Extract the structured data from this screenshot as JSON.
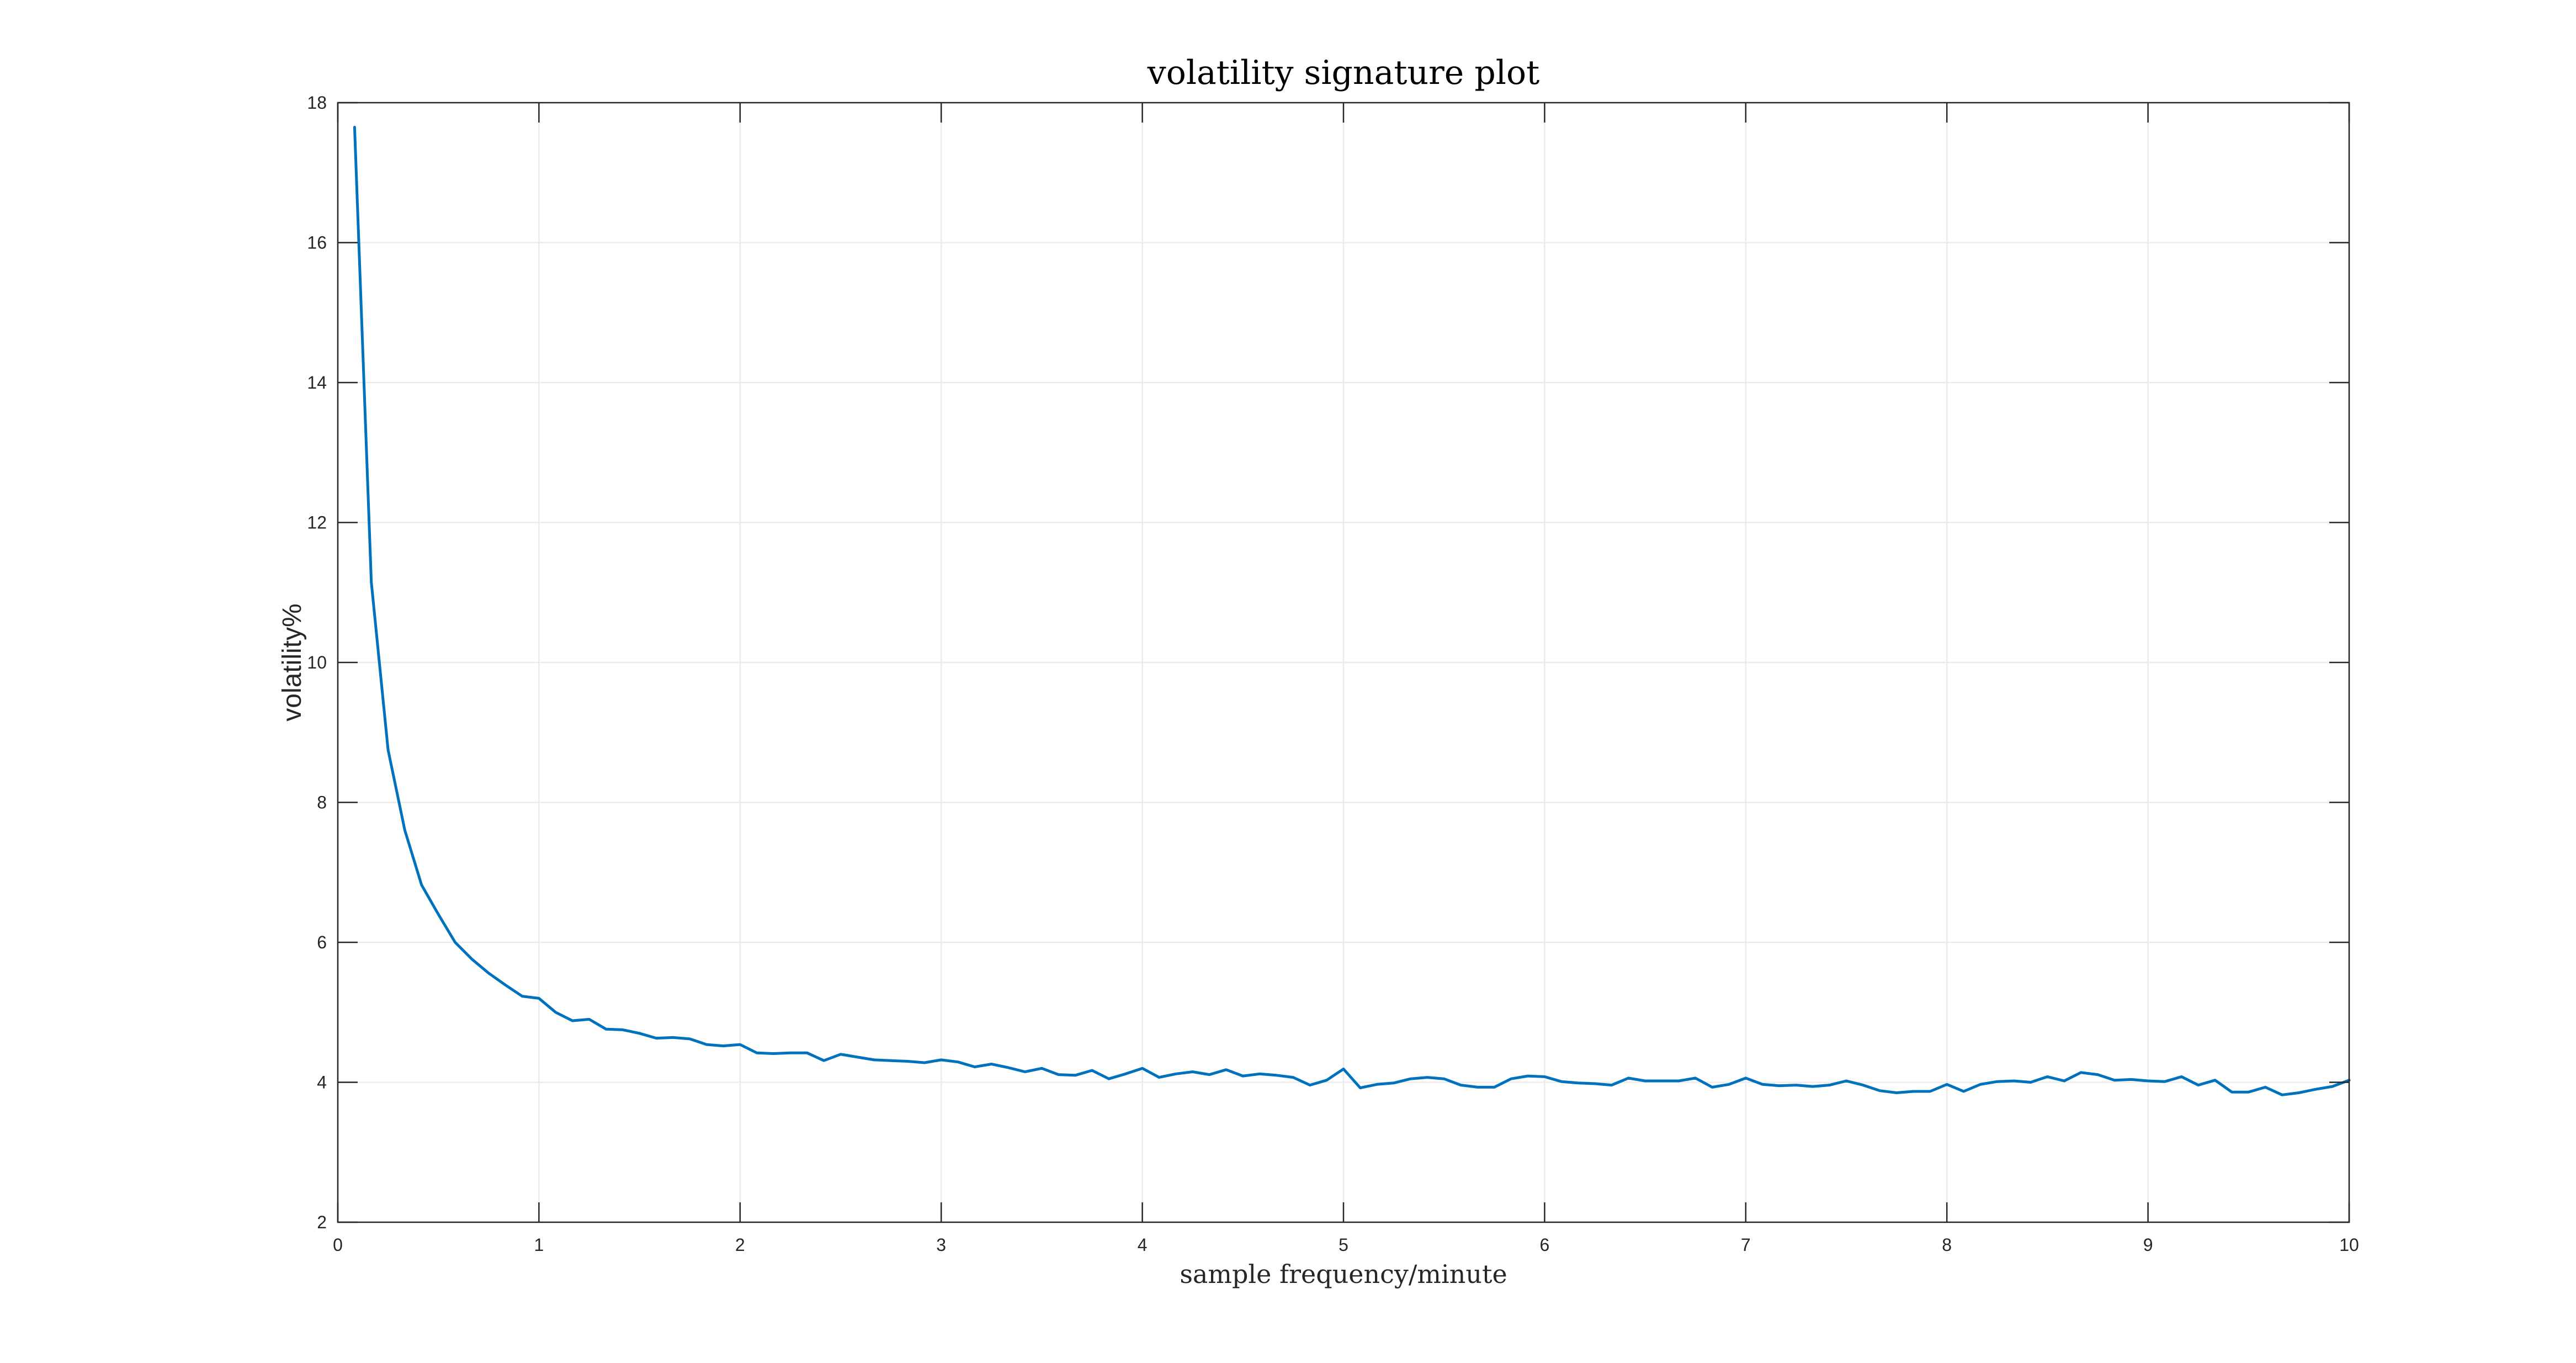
{
  "chart_data": {
    "type": "line",
    "title": "volatility signature plot",
    "xlabel": "sample frequency/minute",
    "ylabel": "volatility%",
    "xlim": [
      0,
      10
    ],
    "ylim": [
      2,
      18
    ],
    "xticks": [
      0,
      1,
      2,
      3,
      4,
      5,
      6,
      7,
      8,
      9,
      10
    ],
    "yticks": [
      2,
      4,
      6,
      8,
      10,
      12,
      14,
      16,
      18
    ],
    "grid": true,
    "line_color": "#0072bd",
    "series": [
      {
        "x": [
          0.0833,
          0.1667,
          0.25,
          0.3333,
          0.4167,
          0.5,
          0.5833,
          0.6667,
          0.75,
          0.8333,
          0.9167,
          1.0,
          1.0833,
          1.1667,
          1.25,
          1.3333,
          1.4167,
          1.5,
          1.5833,
          1.6667,
          1.75,
          1.8333,
          1.9167,
          2.0,
          2.0833,
          2.1667,
          2.25,
          2.3333,
          2.4167,
          2.5,
          2.5833,
          2.6667,
          2.75,
          2.8333,
          2.9167,
          3.0,
          3.0833,
          3.1667,
          3.25,
          3.3333,
          3.4167,
          3.5,
          3.5833,
          3.6667,
          3.75,
          3.8333,
          3.9167,
          4.0,
          4.0833,
          4.1667,
          4.25,
          4.3333,
          4.4167,
          4.5,
          4.5833,
          4.6667,
          4.75,
          4.8333,
          4.9167,
          5.0,
          5.0833,
          5.1667,
          5.25,
          5.3333,
          5.4167,
          5.5,
          5.5833,
          5.6667,
          5.75,
          5.8333,
          5.9167,
          6.0,
          6.0833,
          6.1667,
          6.25,
          6.3333,
          6.4167,
          6.5,
          6.5833,
          6.6667,
          6.75,
          6.8333,
          6.9167,
          7.0,
          7.0833,
          7.1667,
          7.25,
          7.3333,
          7.4167,
          7.5,
          7.5833,
          7.6667,
          7.75,
          7.8333,
          7.9167,
          8.0,
          8.0833,
          8.1667,
          8.25,
          8.3333,
          8.4167,
          8.5,
          8.5833,
          8.6667,
          8.75,
          8.8333,
          8.9167,
          9.0,
          9.0833,
          9.1667,
          9.25,
          9.3333,
          9.4167,
          9.5,
          9.5833,
          9.6667,
          9.75,
          9.8333,
          9.9167,
          10.0
        ],
        "y": [
          17.65,
          11.15,
          8.75,
          7.6,
          6.82,
          6.4,
          6.0,
          5.76,
          5.56,
          5.39,
          5.23,
          5.2,
          5.0,
          4.88,
          4.9,
          4.76,
          4.75,
          4.7,
          4.63,
          4.64,
          4.62,
          4.54,
          4.52,
          4.54,
          4.42,
          4.41,
          4.42,
          4.42,
          4.31,
          4.4,
          4.36,
          4.32,
          4.31,
          4.3,
          4.28,
          4.32,
          4.29,
          4.22,
          4.26,
          4.21,
          4.15,
          4.2,
          4.11,
          4.1,
          4.17,
          4.05,
          4.12,
          4.2,
          4.07,
          4.12,
          4.15,
          4.11,
          4.18,
          4.09,
          4.12,
          4.1,
          4.07,
          3.96,
          4.03,
          4.19,
          3.92,
          3.97,
          3.99,
          4.05,
          4.07,
          4.05,
          3.96,
          3.93,
          3.93,
          4.05,
          4.09,
          4.08,
          4.01,
          3.99,
          3.98,
          3.96,
          4.06,
          4.02,
          4.02,
          4.02,
          4.06,
          3.93,
          3.97,
          4.06,
          3.97,
          3.95,
          3.96,
          3.94,
          3.96,
          4.02,
          3.96,
          3.88,
          3.85,
          3.87,
          3.87,
          3.97,
          3.87,
          3.97,
          4.01,
          4.02,
          4.0,
          4.08,
          4.02,
          4.14,
          4.11,
          4.03,
          4.04,
          4.02,
          4.01,
          4.08,
          3.96,
          4.03,
          3.86,
          3.86,
          3.93,
          3.82,
          3.85,
          3.9,
          3.94,
          4.03
        ]
      }
    ]
  }
}
